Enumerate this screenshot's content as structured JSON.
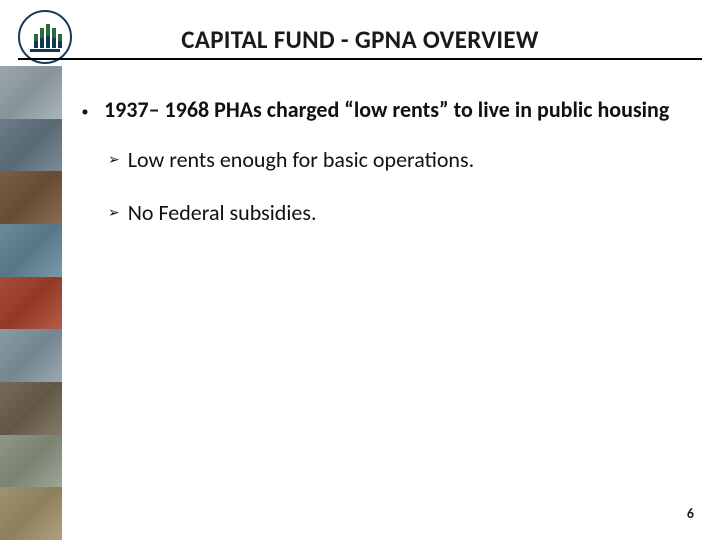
{
  "title": "CAPITAL FUND - GPNA OVERVIEW",
  "bullet": {
    "text": "1937– 1968 PHAs charged “low rents” to live in public housing"
  },
  "subbullets": [
    "Low rents enough for basic operations.",
    "No Federal subsidies."
  ],
  "pageNumber": "6",
  "sidebarThumbs": [
    "#9aa7ad",
    "#6d7d88",
    "#7a5f46",
    "#6b8a9a",
    "#a84d3a",
    "#8a9aa4",
    "#766a5a",
    "#8e9785",
    "#a19270"
  ],
  "colors": {
    "ruleColor": "#000000",
    "textColor": "#111111",
    "background": "#ffffff"
  }
}
